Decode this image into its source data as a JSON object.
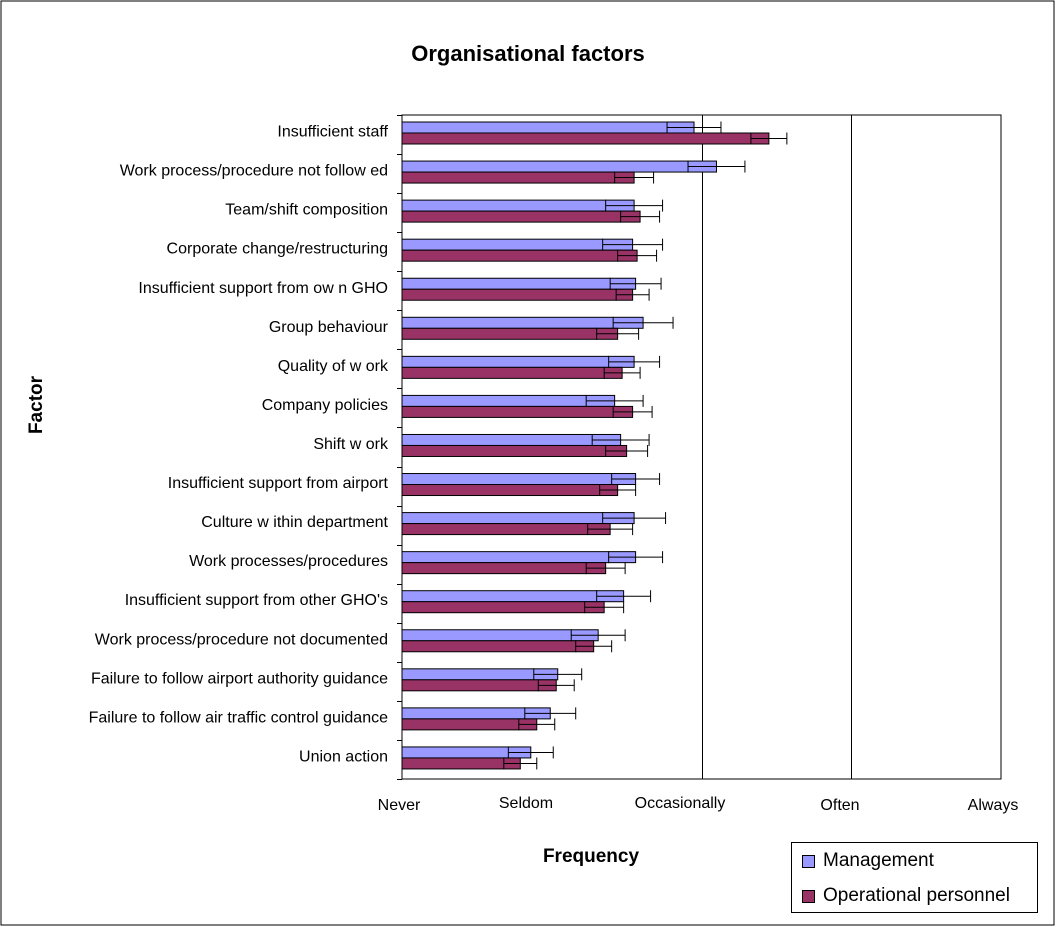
{
  "chart_data": {
    "type": "bar",
    "orientation": "horizontal",
    "title": "Organisational factors",
    "xlabel": "Frequency",
    "ylabel": "Factor",
    "xticks": [
      "Never",
      "Seldom",
      "Occasionally",
      "Often",
      "Always"
    ],
    "xlim": [
      1,
      5
    ],
    "grid": "vertical",
    "legend_position": "bottom-right",
    "categories": [
      "Insufficient staff",
      "Work process/procedure not follow ed",
      "Team/shift composition",
      "Corporate change/restructuring",
      "Insufficient support from ow n GHO",
      "Group behaviour",
      "Quality of w ork",
      "Company policies",
      "Shift w ork",
      "Insufficient support from airport",
      "Culture w ithin department",
      "Work processes/procedures",
      "Insufficient support from other GHO's",
      "Work process/procedure not documented",
      "Failure to follow  airport authority guidance",
      "Failure to follow  air traffic control guidance",
      "Union action"
    ],
    "series": [
      {
        "name": "Management",
        "color": "#9999ff",
        "values": [
          2.95,
          3.1,
          2.55,
          2.54,
          2.56,
          2.61,
          2.55,
          2.42,
          2.46,
          2.56,
          2.55,
          2.56,
          2.48,
          2.31,
          2.04,
          1.99,
          1.86
        ],
        "error": [
          0.18,
          0.19,
          0.19,
          0.2,
          0.17,
          0.2,
          0.17,
          0.19,
          0.19,
          0.16,
          0.21,
          0.18,
          0.18,
          0.18,
          0.16,
          0.17,
          0.15
        ]
      },
      {
        "name": "Operational personnel",
        "color": "#993366",
        "values": [
          3.45,
          2.55,
          2.59,
          2.57,
          2.54,
          2.44,
          2.47,
          2.54,
          2.5,
          2.44,
          2.39,
          2.36,
          2.35,
          2.28,
          2.03,
          1.9,
          1.79
        ],
        "error": [
          0.12,
          0.13,
          0.13,
          0.13,
          0.11,
          0.14,
          0.12,
          0.13,
          0.14,
          0.12,
          0.15,
          0.13,
          0.13,
          0.12,
          0.12,
          0.12,
          0.11
        ]
      }
    ]
  }
}
